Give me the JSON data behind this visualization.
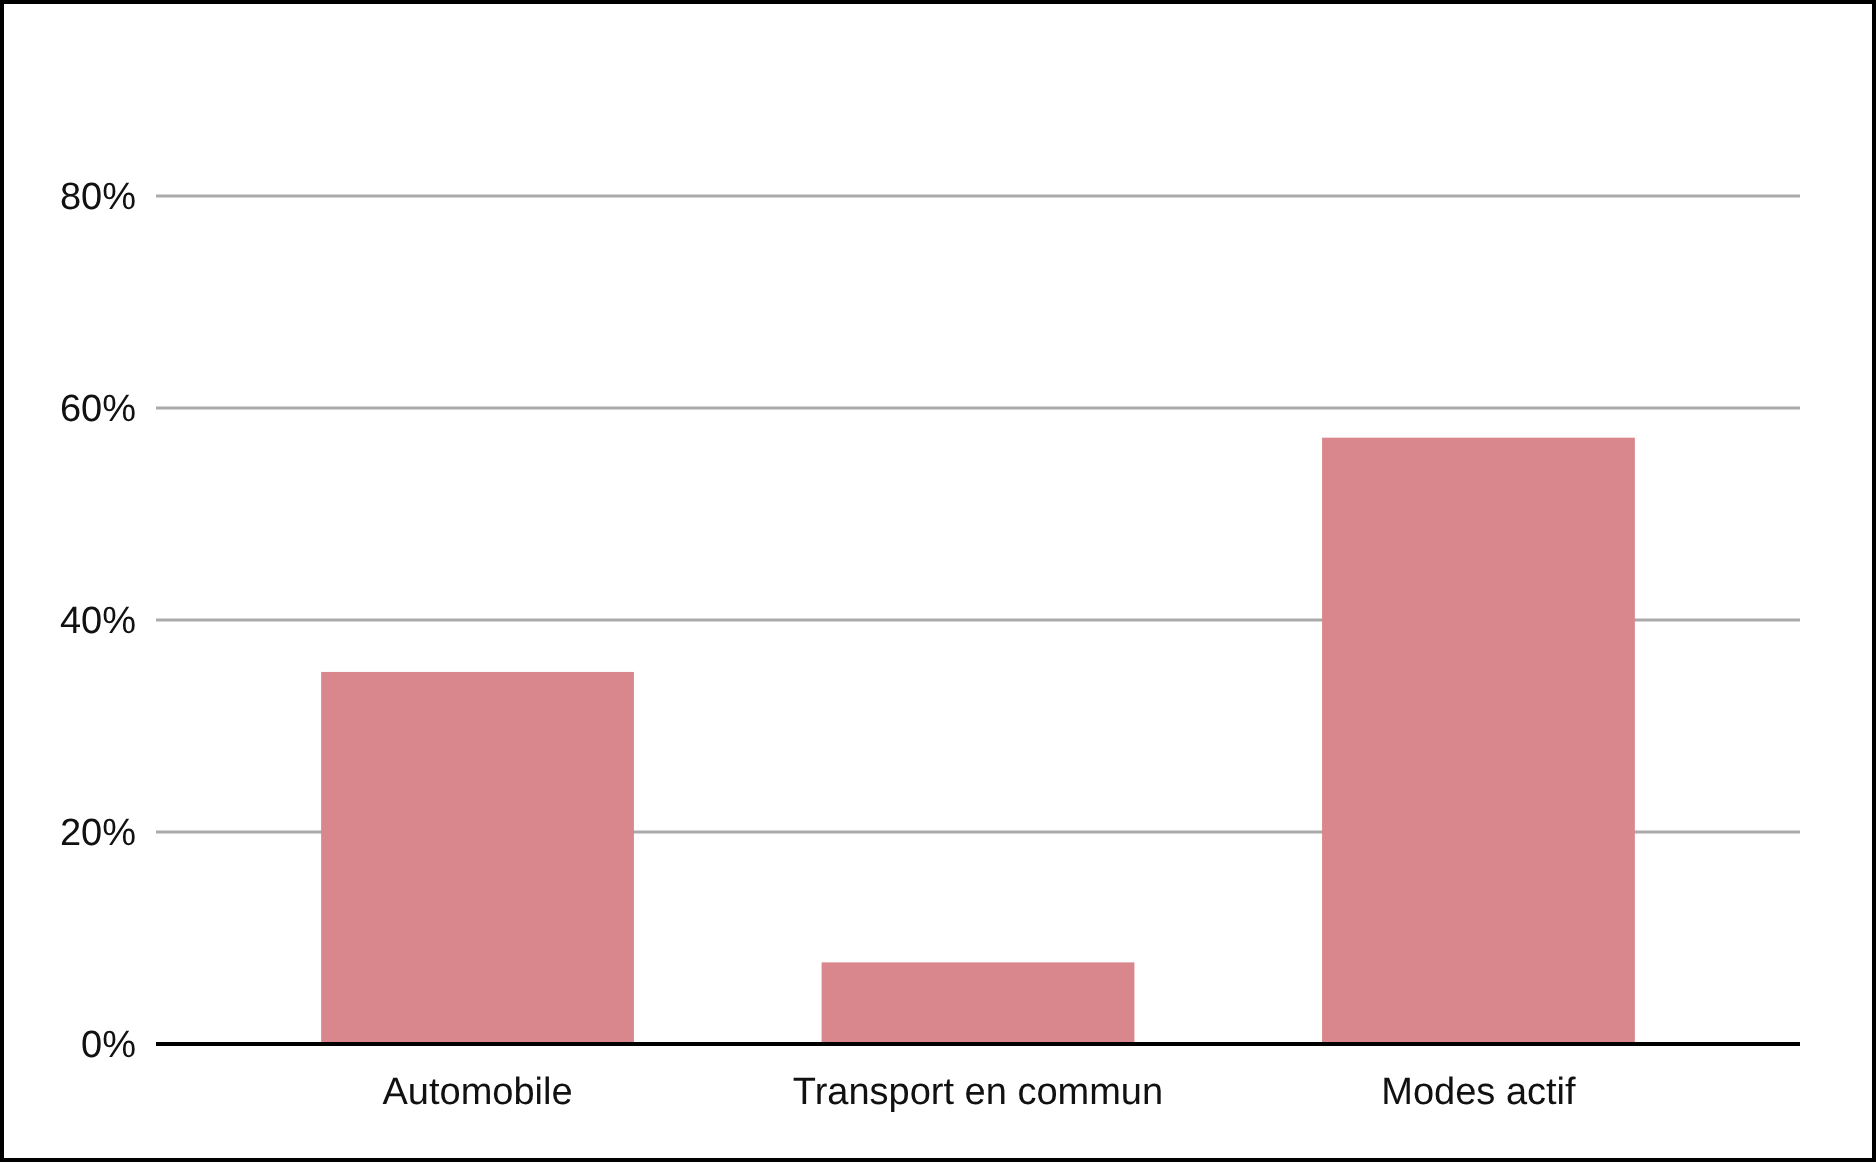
{
  "chart_data": {
    "type": "bar",
    "categories": [
      "Automobile",
      "Transport en commun",
      "Modes actif"
    ],
    "values": [
      35.1,
      7.7,
      57.2
    ],
    "color": "#d9878c",
    "ylim": [
      0,
      80
    ],
    "yticks": [
      {
        "value": 0,
        "label": "0%"
      },
      {
        "value": 20,
        "label": "20%"
      },
      {
        "value": 40,
        "label": "40%"
      },
      {
        "value": 60,
        "label": "60%"
      },
      {
        "value": 80,
        "label": "80%"
      }
    ],
    "grid": "y"
  }
}
